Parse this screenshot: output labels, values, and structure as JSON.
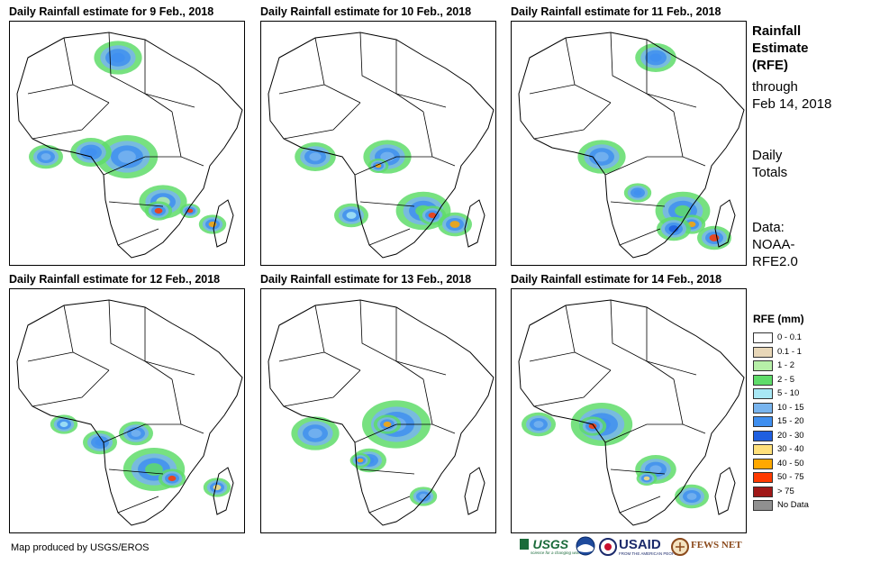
{
  "panels": [
    {
      "title": "Daily Rainfall estimate for 9 Feb., 2018"
    },
    {
      "title": "Daily Rainfall estimate for 10 Feb., 2018"
    },
    {
      "title": "Daily Rainfall estimate for 11 Feb., 2018"
    },
    {
      "title": "Daily Rainfall estimate for 12 Feb., 2018"
    },
    {
      "title": "Daily Rainfall estimate for 13 Feb., 2018"
    },
    {
      "title": "Daily Rainfall estimate for 14 Feb., 2018"
    }
  ],
  "sidebar": {
    "title_line1": "Rainfall",
    "title_line2": "Estimate",
    "title_line3": "(RFE)",
    "through": "through",
    "date": "Feb 14, 2018",
    "daily": "Daily",
    "totals": "Totals",
    "data_label": "Data:",
    "source1": "NOAA-",
    "source2": "RFE2.0"
  },
  "legend": {
    "title": "RFE (mm)",
    "items": [
      {
        "label": "0 - 0.1",
        "color": "#ffffff"
      },
      {
        "label": "0.1 - 1",
        "color": "#e8d7b8"
      },
      {
        "label": "1 - 2",
        "color": "#b7f0a8"
      },
      {
        "label": "2 - 5",
        "color": "#5fdc6a"
      },
      {
        "label": "5 - 10",
        "color": "#a8e8f5"
      },
      {
        "label": "10 - 15",
        "color": "#78b4ee"
      },
      {
        "label": "15 - 20",
        "color": "#3f8ff0"
      },
      {
        "label": "20 - 30",
        "color": "#1f5fe0"
      },
      {
        "label": "30 - 40",
        "color": "#ffe07a"
      },
      {
        "label": "40 - 50",
        "color": "#ffa800"
      },
      {
        "label": "50 - 75",
        "color": "#ff3a00"
      },
      {
        "label": "> 75",
        "color": "#a01818"
      },
      {
        "label": "No Data",
        "color": "#909090"
      }
    ]
  },
  "credit": "Map produced by USGS/EROS",
  "logos": {
    "usgs": "USGS",
    "usgs_tagline": "science for a changing world",
    "noaa": "NOAA",
    "usaid": "USAID",
    "usaid_tagline": "FROM THE AMERICAN PEOPLE",
    "fewsnet": "FEWS NET"
  }
}
